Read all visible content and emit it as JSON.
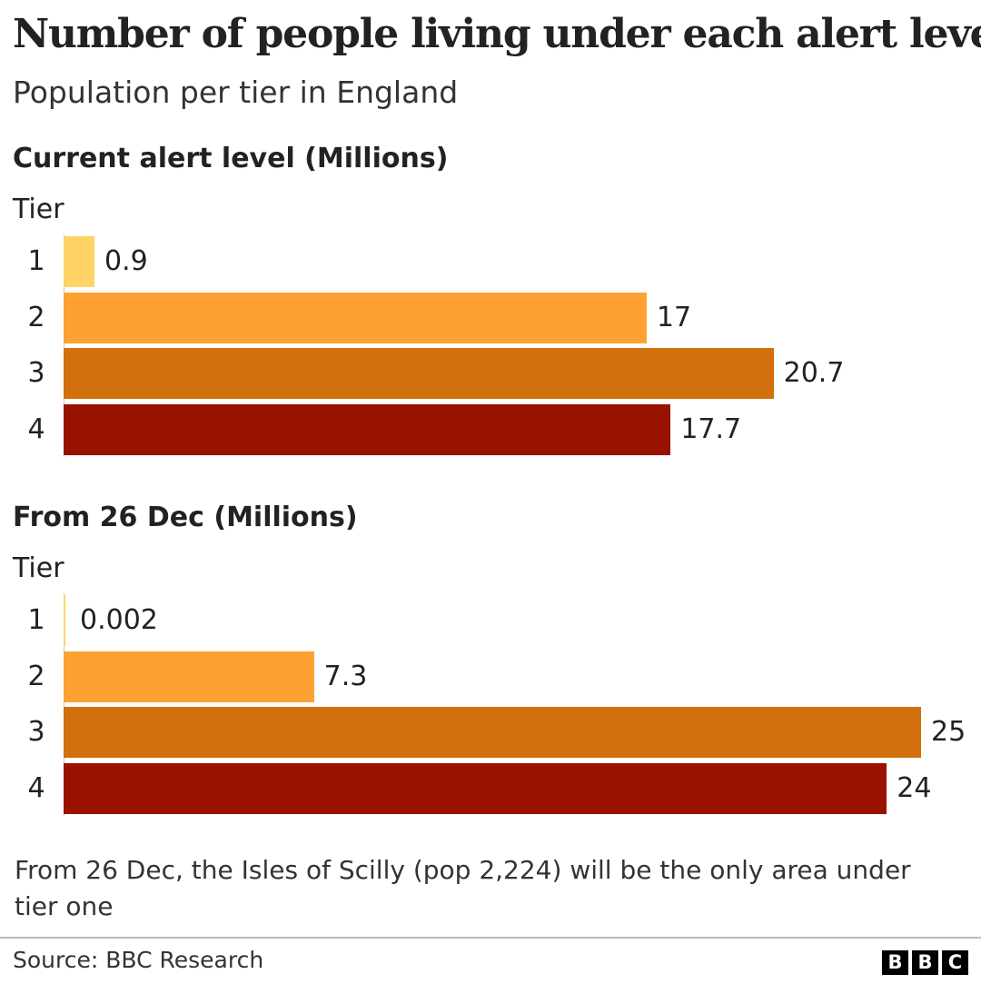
{
  "title": "Number of people living under each alert level",
  "subtitle": "Population per tier in England",
  "note": "From 26 Dec, the Isles of Scilly (pop 2,224) will be the only area under tier one",
  "source": "Source: BBC Research",
  "logo": [
    "B",
    "B",
    "C"
  ],
  "colors": {
    "tier1": "#ffd366",
    "tier2": "#fda232",
    "tier3": "#d1700d",
    "tier4": "#991200"
  },
  "chart_data": [
    {
      "type": "bar",
      "orientation": "horizontal",
      "title": "Current alert level (Millions)",
      "ylabel": "Tier",
      "categories": [
        "1",
        "2",
        "3",
        "4"
      ],
      "values": [
        0.9,
        17,
        20.7,
        17.7
      ],
      "value_labels": [
        "0.9",
        "17",
        "20.7",
        "17.7"
      ],
      "xlim": [
        0,
        25
      ]
    },
    {
      "type": "bar",
      "orientation": "horizontal",
      "title": "From 26 Dec (Millions)",
      "ylabel": "Tier",
      "categories": [
        "1",
        "2",
        "3",
        "4"
      ],
      "values": [
        0.002,
        7.3,
        25,
        24
      ],
      "value_labels": [
        "0.002",
        "7.3",
        "25",
        "24"
      ],
      "xlim": [
        0,
        25
      ]
    }
  ]
}
